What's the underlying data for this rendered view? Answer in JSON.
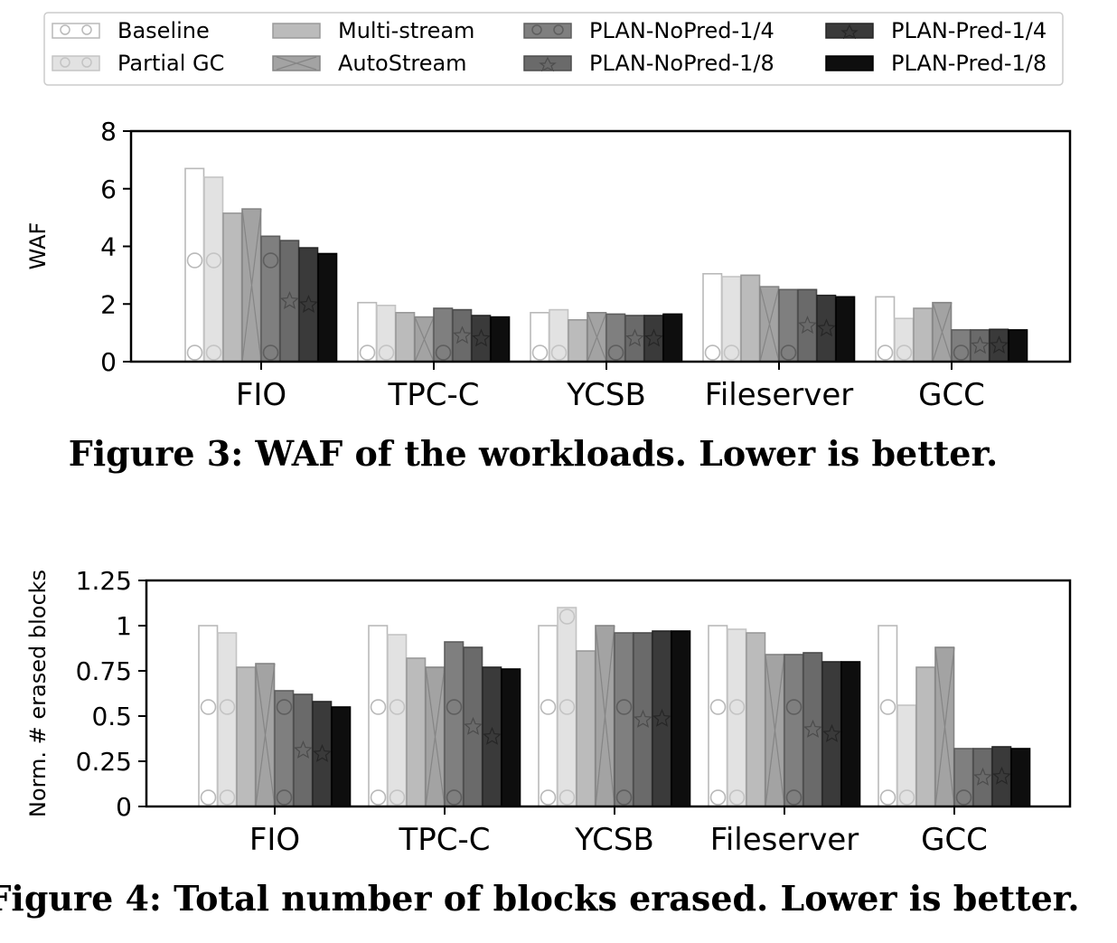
{
  "legend": {
    "entries": [
      {
        "name": "Baseline",
        "fill": "#ffffff",
        "stroke": "#b9b9b9",
        "icon": "circle-hatch"
      },
      {
        "name": "Partial GC",
        "fill": "#e2e2e2",
        "stroke": "#c4c4c4",
        "icon": "circle-hatch"
      },
      {
        "name": "Multi-stream",
        "fill": "#bbbbbb",
        "stroke": "#9a9a9a",
        "icon": "plain"
      },
      {
        "name": "AutoStream",
        "fill": "#a3a3a3",
        "stroke": "#858585",
        "icon": "cross-hatch"
      },
      {
        "name": "PLAN-NoPred-1/4",
        "fill": "#7f7f7f",
        "stroke": "#5e5e5e",
        "icon": "circle-hatch"
      },
      {
        "name": "PLAN-NoPred-1/8",
        "fill": "#6a6a6a",
        "stroke": "#4c4c4c",
        "icon": "star-hatch"
      },
      {
        "name": "PLAN-Pred-1/4",
        "fill": "#3a3a3a",
        "stroke": "#262626",
        "icon": "star-hatch"
      },
      {
        "name": "PLAN-Pred-1/8",
        "fill": "#0e0e0e",
        "stroke": "#000000",
        "icon": "plain"
      }
    ]
  },
  "chart_data": [
    {
      "type": "bar",
      "title": "",
      "xlabel": "",
      "ylabel": "WAF",
      "ylim": [
        0,
        8
      ],
      "yticks": [
        "0",
        "2",
        "4",
        "6",
        "8"
      ],
      "categories": [
        "FIO",
        "TPC-C",
        "YCSB",
        "Fileserver",
        "GCC"
      ],
      "caption": "Figure 3: WAF of the workloads. Lower is better.",
      "grid": false,
      "legend_position": "top (shared)",
      "series": [
        {
          "name": "Baseline",
          "values": [
            6.7,
            2.05,
            1.7,
            3.05,
            2.25
          ]
        },
        {
          "name": "Partial GC",
          "values": [
            6.4,
            1.95,
            1.8,
            2.95,
            1.5
          ]
        },
        {
          "name": "Multi-stream",
          "values": [
            5.15,
            1.7,
            1.45,
            3.0,
            1.85
          ]
        },
        {
          "name": "AutoStream",
          "values": [
            5.3,
            1.55,
            1.7,
            2.6,
            2.05
          ]
        },
        {
          "name": "PLAN-NoPred-1/4",
          "values": [
            4.35,
            1.85,
            1.65,
            2.5,
            1.1
          ]
        },
        {
          "name": "PLAN-NoPred-1/8",
          "values": [
            4.2,
            1.8,
            1.6,
            2.5,
            1.1
          ]
        },
        {
          "name": "PLAN-Pred-1/4",
          "values": [
            3.95,
            1.6,
            1.6,
            2.3,
            1.12
          ]
        },
        {
          "name": "PLAN-Pred-1/8",
          "values": [
            3.75,
            1.55,
            1.65,
            2.25,
            1.1
          ]
        }
      ]
    },
    {
      "type": "bar",
      "title": "",
      "xlabel": "",
      "ylabel": "Norm. # erased blocks",
      "ylim": [
        0,
        1.25
      ],
      "yticks": [
        "0",
        "0.25",
        "0.5",
        "0.75",
        "1",
        "1.25"
      ],
      "categories": [
        "FIO",
        "TPC-C",
        "YCSB",
        "Fileserver",
        "GCC"
      ],
      "caption": "Figure 4: Total number of blocks erased. Lower is better.",
      "grid": false,
      "legend_position": "top (shared)",
      "series": [
        {
          "name": "Baseline",
          "values": [
            1.0,
            1.0,
            1.0,
            1.0,
            1.0
          ]
        },
        {
          "name": "Partial GC",
          "values": [
            0.96,
            0.95,
            1.1,
            0.98,
            0.56
          ]
        },
        {
          "name": "Multi-stream",
          "values": [
            0.77,
            0.82,
            0.86,
            0.96,
            0.77
          ]
        },
        {
          "name": "AutoStream",
          "values": [
            0.79,
            0.77,
            1.0,
            0.84,
            0.88
          ]
        },
        {
          "name": "PLAN-NoPred-1/4",
          "values": [
            0.64,
            0.91,
            0.96,
            0.84,
            0.32
          ]
        },
        {
          "name": "PLAN-NoPred-1/8",
          "values": [
            0.62,
            0.88,
            0.96,
            0.85,
            0.32
          ]
        },
        {
          "name": "PLAN-Pred-1/4",
          "values": [
            0.58,
            0.77,
            0.97,
            0.8,
            0.33
          ]
        },
        {
          "name": "PLAN-Pred-1/8",
          "values": [
            0.55,
            0.76,
            0.97,
            0.8,
            0.32
          ]
        }
      ]
    }
  ]
}
